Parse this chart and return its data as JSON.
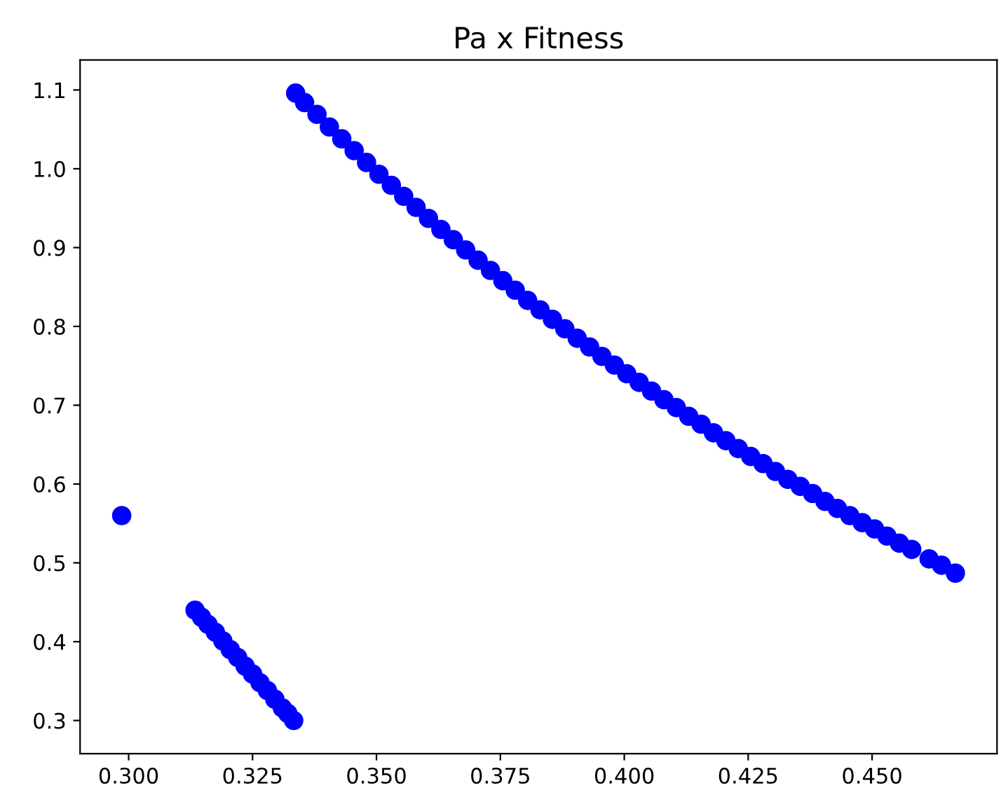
{
  "chart_data": {
    "type": "scatter",
    "title": "Pa x Fitness",
    "marker": "circle",
    "grid": false,
    "xlim": [
      0.2902,
      0.4752
    ],
    "ylim": [
      0.258,
      1.138
    ],
    "xticks": [
      {
        "value": 0.3,
        "label": "0.300"
      },
      {
        "value": 0.325,
        "label": "0.325"
      },
      {
        "value": 0.35,
        "label": "0.350"
      },
      {
        "value": 0.375,
        "label": "0.375"
      },
      {
        "value": 0.4,
        "label": "0.400"
      },
      {
        "value": 0.425,
        "label": "0.425"
      },
      {
        "value": 0.45,
        "label": "0.450"
      }
    ],
    "yticks": [
      0.3,
      0.4,
      0.5,
      0.6,
      0.7,
      0.8,
      0.9,
      {
        "value": 1.0,
        "label": "1.0"
      },
      1.1
    ],
    "series": [
      {
        "color": "#0000ff",
        "x": [
          0.2986,
          0.3134,
          0.3147,
          0.316,
          0.3175,
          0.319,
          0.3205,
          0.322,
          0.3235,
          0.325,
          0.3265,
          0.328,
          0.3295,
          0.331,
          0.3321,
          0.3333,
          0.3337,
          0.3355,
          0.338,
          0.3405,
          0.343,
          0.3455,
          0.348,
          0.3505,
          0.353,
          0.3555,
          0.358,
          0.3605,
          0.363,
          0.3655,
          0.368,
          0.3705,
          0.373,
          0.3755,
          0.378,
          0.3805,
          0.383,
          0.3855,
          0.388,
          0.3905,
          0.393,
          0.3955,
          0.398,
          0.4005,
          0.403,
          0.4055,
          0.408,
          0.4105,
          0.413,
          0.4155,
          0.418,
          0.4205,
          0.423,
          0.4255,
          0.428,
          0.4305,
          0.433,
          0.4355,
          0.438,
          0.4405,
          0.443,
          0.4455,
          0.448,
          0.4505,
          0.453,
          0.4555,
          0.458,
          0.4615,
          0.464,
          0.4668
        ],
        "values": [
          0.56,
          0.44,
          0.431,
          0.422,
          0.412,
          0.401,
          0.39,
          0.38,
          0.369,
          0.359,
          0.348,
          0.338,
          0.327,
          0.316,
          0.309,
          0.3,
          1.096,
          1.084,
          1.069,
          1.053,
          1.038,
          1.023,
          1.008,
          0.993,
          0.979,
          0.965,
          0.951,
          0.937,
          0.923,
          0.91,
          0.897,
          0.884,
          0.871,
          0.858,
          0.846,
          0.833,
          0.821,
          0.809,
          0.797,
          0.785,
          0.774,
          0.762,
          0.751,
          0.74,
          0.729,
          0.718,
          0.707,
          0.697,
          0.686,
          0.676,
          0.665,
          0.655,
          0.645,
          0.635,
          0.626,
          0.616,
          0.606,
          0.597,
          0.588,
          0.578,
          0.569,
          0.56,
          0.551,
          0.543,
          0.534,
          0.525,
          0.517,
          0.505,
          0.497,
          0.487
        ]
      }
    ]
  }
}
